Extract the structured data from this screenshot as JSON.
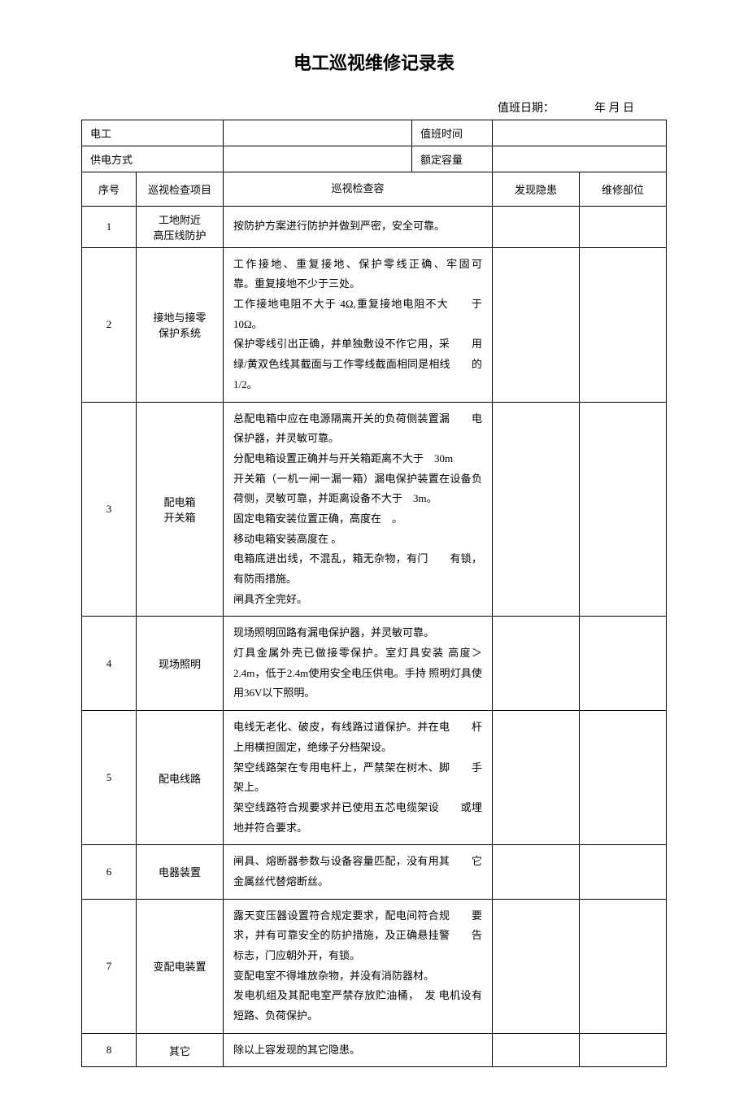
{
  "title": "电工巡视维修记录表",
  "dateLine": "值班日期：　　　　年 月 日",
  "topRows": {
    "electrician": "电工",
    "dutyTime": "值班时间",
    "powerMode": "供电方式",
    "ratedCapacity": "额定容量"
  },
  "headers": {
    "seq": "序号",
    "item": "巡视检查项目",
    "content": "巡视检查容",
    "hazard": "发现隐患",
    "part": "维修部位"
  },
  "rows": [
    {
      "seq": "1",
      "item": "工地附近\n高压线防护",
      "content": "按防护方案进行防护并做到严密，安全可靠。"
    },
    {
      "seq": "2",
      "item": "接地与接零\n保护系统",
      "content": "工作接地、重复接地、保护零线正确、牢固可　　靠。重复接地不少于三处。\n工作接地电阻不大于 4Ω,重复接地电阻不大　　于10Ω。\n保护零线引出正确，并单独敷设不作它用，采　　用绿/黄双色线其截面与工作零线截面相同是相线　　的1/2。"
    },
    {
      "seq": "3",
      "item": "配电箱\n开关箱",
      "content": "总配电箱中应在电源隔离开关的负荷侧装置漏　　电保护器，并灵敏可靠。\n分配电箱设置正确并与开关箱距离不大于　30m\n开关箱（一机一闸一漏一箱）漏电保护装置在设备负荷侧，灵敏可靠，并距离设备不大于　3m。\n固定电箱安装位置正确，高度在　。\n移动电箱安装高度在 。\n电箱底进出线，不混乱，箱无杂物，有门　　有锁，有防雨措施。\n闸具齐全完好。"
    },
    {
      "seq": "4",
      "item": "现场照明",
      "content": "现场照明回路有漏电保护器，并灵敏可靠。\n灯具金属外壳已做接零保护。室灯具安装 高度＞2.4m，低于2.4m使用安全电压供电。手持 照明灯具使用36V以下照明。"
    },
    {
      "seq": "5",
      "item": "配电线路",
      "content": "电线无老化、破皮，有线路过道保护。并在电　　杆上用横担固定，绝缘子分档架设。\n架空线路架在专用电杆上，严禁架在树木、脚　　手架上。\n架空线路符合规要求并已使用五芯电缆架设　　或埋地并符合要求。"
    },
    {
      "seq": "6",
      "item": "电器装置",
      "content": "闸具、熔断器参数与设备容量匹配，没有用其　　它金属丝代替熔断丝。"
    },
    {
      "seq": "7",
      "item": "变配电装置",
      "content": "露天变压器设置符合规定要求，配电间符合规　　要求，并有可靠安全的防护措施，及正确悬挂警　　告标志，门应朝外开，有锁。\n变配电室不得堆放杂物，并没有消防器材。\n发电机组及其配电室严禁存放贮油桶，　发 电机设有短路、负荷保护。"
    },
    {
      "seq": "8",
      "item": "其它",
      "content": "除以上容发现的其它隐患。"
    }
  ]
}
